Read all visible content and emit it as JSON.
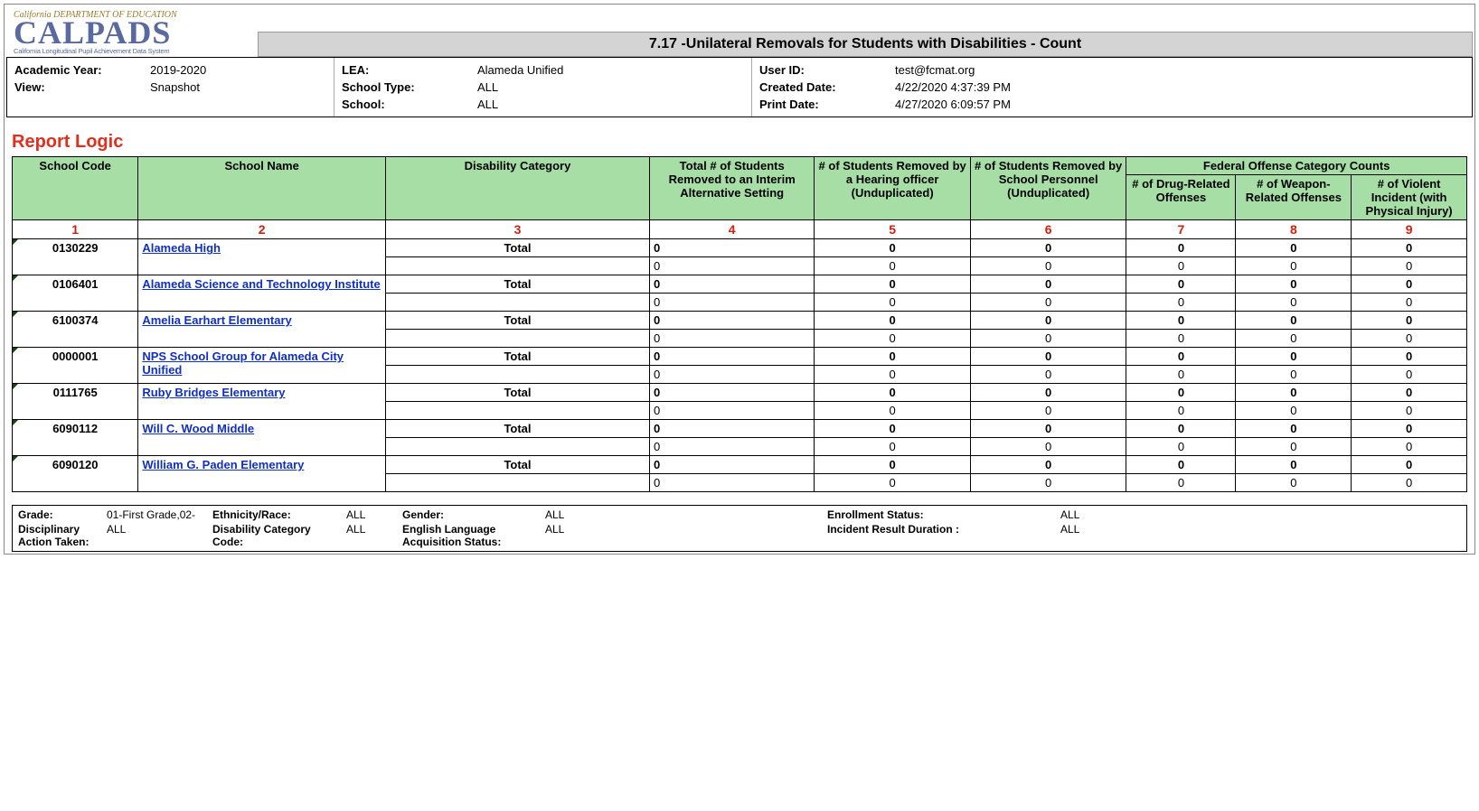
{
  "logo": {
    "top": "California DEPARTMENT OF EDUCATION",
    "main": "CALPADS",
    "sub": "California Longitudinal Pupil Achievement Data System"
  },
  "report_title": "7.17 -Unilateral Removals for Students with Disabilities - Count",
  "meta": {
    "academic_year_label": "Academic Year:",
    "academic_year": "2019-2020",
    "view_label": "View:",
    "view": "Snapshot",
    "lea_label": "LEA:",
    "lea": "Alameda Unified",
    "school_type_label": "School Type:",
    "school_type": "ALL",
    "school_label": "School:",
    "school": "ALL",
    "user_id_label": "User ID:",
    "user_id": "test@fcmat.org",
    "created_date_label": "Created Date:",
    "created_date": "4/22/2020 4:37:39 PM",
    "print_date_label": "Print Date:",
    "print_date": "4/27/2020 6:09:57 PM"
  },
  "section_title": "Report Logic",
  "table": {
    "group_header": "Federal Offense Category Counts",
    "columns": {
      "c1": "School Code",
      "c2": "School Name",
      "c3": "Disability Category",
      "c4": "Total # of Students Removed to an Interim Alternative Setting",
      "c5": "# of Students Removed by a Hearing officer (Unduplicated)",
      "c6": "# of Students Removed by School Personnel (Unduplicated)",
      "c7": "# of Drug-Related Offenses",
      "c8": "# of Weapon-Related Offenses",
      "c9": "# of Violent Incident (with Physical Injury)"
    },
    "col_nums": {
      "c1": "1",
      "c2": "2",
      "c3": "3",
      "c4": "4",
      "c5": "5",
      "c6": "6",
      "c7": "7",
      "c8": "8",
      "c9": "9"
    },
    "col_widths": {
      "c1": "8.4%",
      "c2": "16.5%",
      "c3": "17.6%",
      "c4": "11%",
      "c5": "10.4%",
      "c6": "10.4%",
      "c7": "7.3%",
      "c8": "7.7%",
      "c9": "7.7%"
    },
    "rows": [
      {
        "code": "0130229",
        "name": "Alameda High",
        "total": {
          "disab": "Total",
          "v4": "0",
          "v5": "0",
          "v6": "0",
          "v7": "0",
          "v8": "0",
          "v9": "0"
        },
        "sub": {
          "disab": "",
          "v4": "0",
          "v5": "0",
          "v6": "0",
          "v7": "0",
          "v8": "0",
          "v9": "0"
        }
      },
      {
        "code": "0106401",
        "name": "Alameda Science and Technology Institute",
        "total": {
          "disab": "Total",
          "v4": "0",
          "v5": "0",
          "v6": "0",
          "v7": "0",
          "v8": "0",
          "v9": "0"
        },
        "sub": {
          "disab": "",
          "v4": "0",
          "v5": "0",
          "v6": "0",
          "v7": "0",
          "v8": "0",
          "v9": "0"
        }
      },
      {
        "code": "6100374",
        "name": "Amelia Earhart Elementary",
        "total": {
          "disab": "Total",
          "v4": "0",
          "v5": "0",
          "v6": "0",
          "v7": "0",
          "v8": "0",
          "v9": "0"
        },
        "sub": {
          "disab": "",
          "v4": "0",
          "v5": "0",
          "v6": "0",
          "v7": "0",
          "v8": "0",
          "v9": "0"
        }
      },
      {
        "code": "0000001",
        "name": "NPS School Group for Alameda City Unified",
        "total": {
          "disab": "Total",
          "v4": "0",
          "v5": "0",
          "v6": "0",
          "v7": "0",
          "v8": "0",
          "v9": "0"
        },
        "sub": {
          "disab": "",
          "v4": "0",
          "v5": "0",
          "v6": "0",
          "v7": "0",
          "v8": "0",
          "v9": "0"
        }
      },
      {
        "code": "0111765",
        "name": "Ruby Bridges Elementary",
        "total": {
          "disab": "Total",
          "v4": "0",
          "v5": "0",
          "v6": "0",
          "v7": "0",
          "v8": "0",
          "v9": "0"
        },
        "sub": {
          "disab": "",
          "v4": "0",
          "v5": "0",
          "v6": "0",
          "v7": "0",
          "v8": "0",
          "v9": "0"
        }
      },
      {
        "code": "6090112",
        "name": "Will C. Wood Middle",
        "total": {
          "disab": "Total",
          "v4": "0",
          "v5": "0",
          "v6": "0",
          "v7": "0",
          "v8": "0",
          "v9": "0"
        },
        "sub": {
          "disab": "",
          "v4": "0",
          "v5": "0",
          "v6": "0",
          "v7": "0",
          "v8": "0",
          "v9": "0"
        }
      },
      {
        "code": "6090120",
        "name": "William G. Paden Elementary",
        "total": {
          "disab": "Total",
          "v4": "0",
          "v5": "0",
          "v6": "0",
          "v7": "0",
          "v8": "0",
          "v9": "0"
        },
        "sub": {
          "disab": "",
          "v4": "0",
          "v5": "0",
          "v6": "0",
          "v7": "0",
          "v8": "0",
          "v9": "0"
        }
      }
    ]
  },
  "filters": {
    "grade_label": "Grade:",
    "grade": "01-First Grade,02-",
    "disc_label": "Disciplinary Action Taken:",
    "disc": "ALL",
    "eth_label": "Ethnicity/Race:",
    "eth": "ALL",
    "dcc_label": "Disability Category Code:",
    "dcc": "ALL",
    "gender_label": "Gender:",
    "gender": "ALL",
    "elas_label": "English Language Acquisition Status:",
    "elas": "ALL",
    "enroll_label": "Enrollment Status:",
    "enroll": "ALL",
    "ird_label": "Incident Result Duration :",
    "ird": "ALL"
  },
  "colors": {
    "header_green": "#a6dea6",
    "title_gray": "#d4d4d4",
    "link_blue": "#1030c0",
    "red": "#e03020"
  }
}
